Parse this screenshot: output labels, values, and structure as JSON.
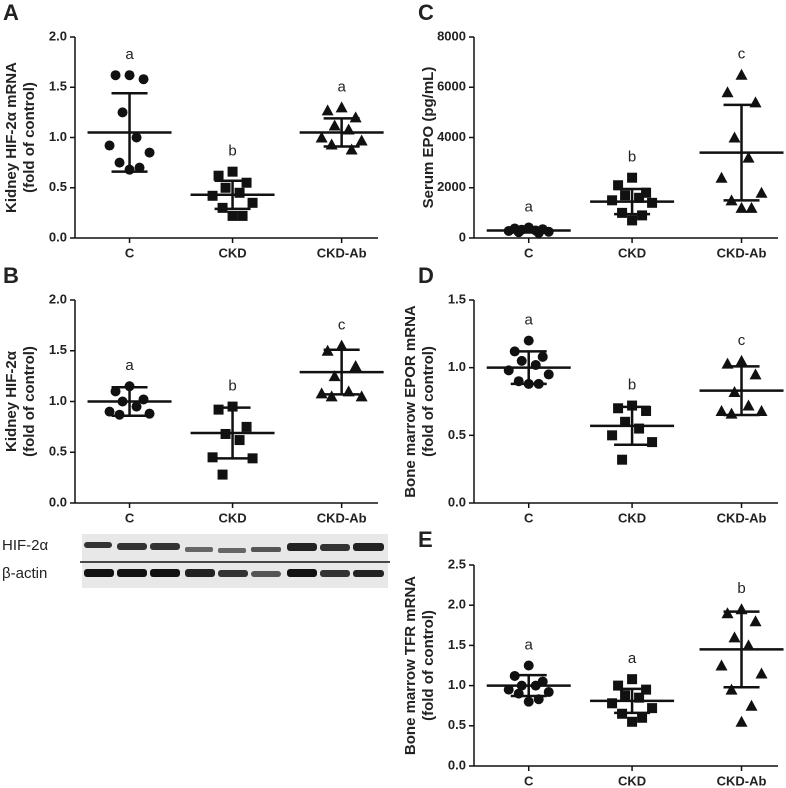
{
  "chart_data": [
    {
      "type": "scatter",
      "panel": "A",
      "ylabel": [
        "Kidney HIF-2α mRNA",
        "(fold of control)"
      ],
      "categories": [
        "C",
        "CKD",
        "CKD-Ab"
      ],
      "ylim": [
        0,
        2
      ],
      "yticks": [
        {
          "value": 0,
          "label": "0.0"
        },
        {
          "value": 0.5,
          "label": "0.5"
        },
        {
          "value": 1,
          "label": "1.0"
        },
        {
          "value": 1.5,
          "label": "1.5"
        },
        {
          "value": 2,
          "label": "2.0"
        }
      ],
      "groups": [
        {
          "marker": "circle",
          "letter": "a",
          "mean": 1.05,
          "sd": 0.39,
          "values": [
            1.62,
            1.62,
            1.58,
            1.25,
            1.0,
            0.92,
            0.85,
            0.75,
            0.7,
            0.68
          ]
        },
        {
          "marker": "square",
          "letter": "b",
          "mean": 0.43,
          "sd": 0.14,
          "values": [
            0.66,
            0.62,
            0.55,
            0.5,
            0.45,
            0.42,
            0.35,
            0.3,
            0.22,
            0.22
          ]
        },
        {
          "marker": "triangle",
          "letter": "a",
          "mean": 1.05,
          "sd": 0.14,
          "values": [
            1.3,
            1.27,
            1.2,
            1.12,
            1.08,
            1.0,
            0.97,
            0.93,
            0.88
          ]
        }
      ]
    },
    {
      "type": "scatter",
      "panel": "B",
      "ylabel": [
        "Kidney HIF-2α",
        "(fold of control)"
      ],
      "categories": [
        "C",
        "CKD",
        "CKD-Ab"
      ],
      "ylim": [
        0,
        2
      ],
      "yticks": [
        {
          "value": 0,
          "label": "0.0"
        },
        {
          "value": 0.5,
          "label": "0.5"
        },
        {
          "value": 1,
          "label": "1.0"
        },
        {
          "value": 1.5,
          "label": "1.5"
        },
        {
          "value": 2,
          "label": "2.0"
        }
      ],
      "groups": [
        {
          "marker": "circle",
          "letter": "a",
          "mean": 1.0,
          "sd": 0.14,
          "values": [
            1.15,
            1.1,
            1.02,
            1.0,
            0.95,
            0.9,
            0.88,
            0.87
          ]
        },
        {
          "marker": "square",
          "letter": "b",
          "mean": 0.69,
          "sd": 0.25,
          "values": [
            0.95,
            0.92,
            0.75,
            0.68,
            0.62,
            0.45,
            0.44,
            0.28
          ]
        },
        {
          "marker": "triangle",
          "letter": "c",
          "mean": 1.29,
          "sd": 0.22,
          "values": [
            1.55,
            1.5,
            1.35,
            1.25,
            1.1,
            1.08,
            1.05,
            1.05
          ]
        }
      ]
    },
    {
      "type": "scatter",
      "panel": "C",
      "ylabel": [
        "Serum EPO (pg/mL)"
      ],
      "categories": [
        "C",
        "CKD",
        "CKD-Ab"
      ],
      "ylim": [
        0,
        8000
      ],
      "yticks": [
        0,
        2000,
        4000,
        6000,
        8000
      ],
      "groups": [
        {
          "marker": "circle",
          "letter": "a",
          "mean": 300,
          "sd": 80,
          "values": [
            420,
            380,
            350,
            330,
            300,
            280,
            250,
            230,
            200
          ]
        },
        {
          "marker": "square",
          "letter": "b",
          "mean": 1450,
          "sd": 500,
          "values": [
            2400,
            2100,
            1800,
            1700,
            1600,
            1500,
            1400,
            1000,
            900,
            700
          ]
        },
        {
          "marker": "triangle",
          "letter": "c",
          "mean": 3400,
          "sd": 1900,
          "values": [
            6500,
            5800,
            5400,
            4000,
            3200,
            2400,
            1800,
            1500,
            1200,
            1200
          ]
        }
      ]
    },
    {
      "type": "scatter",
      "panel": "D",
      "ylabel": [
        "Bone marrow EPOR mRNA",
        "(fold of control)"
      ],
      "categories": [
        "C",
        "CKD",
        "CKD-Ab"
      ],
      "ylim": [
        0,
        1.5
      ],
      "yticks": [
        {
          "value": 0,
          "label": "0.0"
        },
        {
          "value": 0.5,
          "label": "0.5"
        },
        {
          "value": 1,
          "label": "1.0"
        },
        {
          "value": 1.5,
          "label": "1.5"
        }
      ],
      "groups": [
        {
          "marker": "circle",
          "letter": "a",
          "mean": 1.0,
          "sd": 0.12,
          "values": [
            1.2,
            1.12,
            1.08,
            1.05,
            1.02,
            0.98,
            0.95,
            0.9,
            0.88,
            0.88
          ]
        },
        {
          "marker": "square",
          "letter": "b",
          "mean": 0.57,
          "sd": 0.14,
          "values": [
            0.72,
            0.7,
            0.68,
            0.6,
            0.55,
            0.5,
            0.45,
            0.32
          ]
        },
        {
          "marker": "triangle",
          "letter": "c",
          "mean": 0.83,
          "sd": 0.18,
          "values": [
            1.05,
            1.03,
            0.95,
            0.82,
            0.72,
            0.68,
            0.68,
            0.66
          ]
        }
      ]
    },
    {
      "type": "scatter",
      "panel": "E",
      "ylabel": [
        "Bone marrow TFR mRNA",
        "(fold of control)"
      ],
      "categories": [
        "C",
        "CKD",
        "CKD-Ab"
      ],
      "ylim": [
        0,
        2.5
      ],
      "yticks": [
        {
          "value": 0,
          "label": "0.0"
        },
        {
          "value": 0.5,
          "label": "0.5"
        },
        {
          "value": 1,
          "label": "1.0"
        },
        {
          "value": 1.5,
          "label": "1.5"
        },
        {
          "value": 2,
          "label": "2.0"
        },
        {
          "value": 2.5,
          "label": "2.5"
        }
      ],
      "groups": [
        {
          "marker": "circle",
          "letter": "a",
          "mean": 1.0,
          "sd": 0.13,
          "values": [
            1.25,
            1.12,
            1.05,
            1.0,
            1.0,
            0.95,
            0.92,
            0.9,
            0.83,
            0.8
          ]
        },
        {
          "marker": "square",
          "letter": "a",
          "mean": 0.81,
          "sd": 0.15,
          "values": [
            1.08,
            1.0,
            0.95,
            0.88,
            0.85,
            0.78,
            0.72,
            0.65,
            0.6,
            0.55
          ]
        },
        {
          "marker": "triangle",
          "letter": "b",
          "mean": 1.45,
          "sd": 0.47,
          "values": [
            1.95,
            1.9,
            1.8,
            1.6,
            1.5,
            1.25,
            1.15,
            0.95,
            0.75,
            0.55
          ]
        }
      ]
    }
  ],
  "blot": {
    "labels": [
      "HIF-2α",
      "β-actin"
    ]
  }
}
